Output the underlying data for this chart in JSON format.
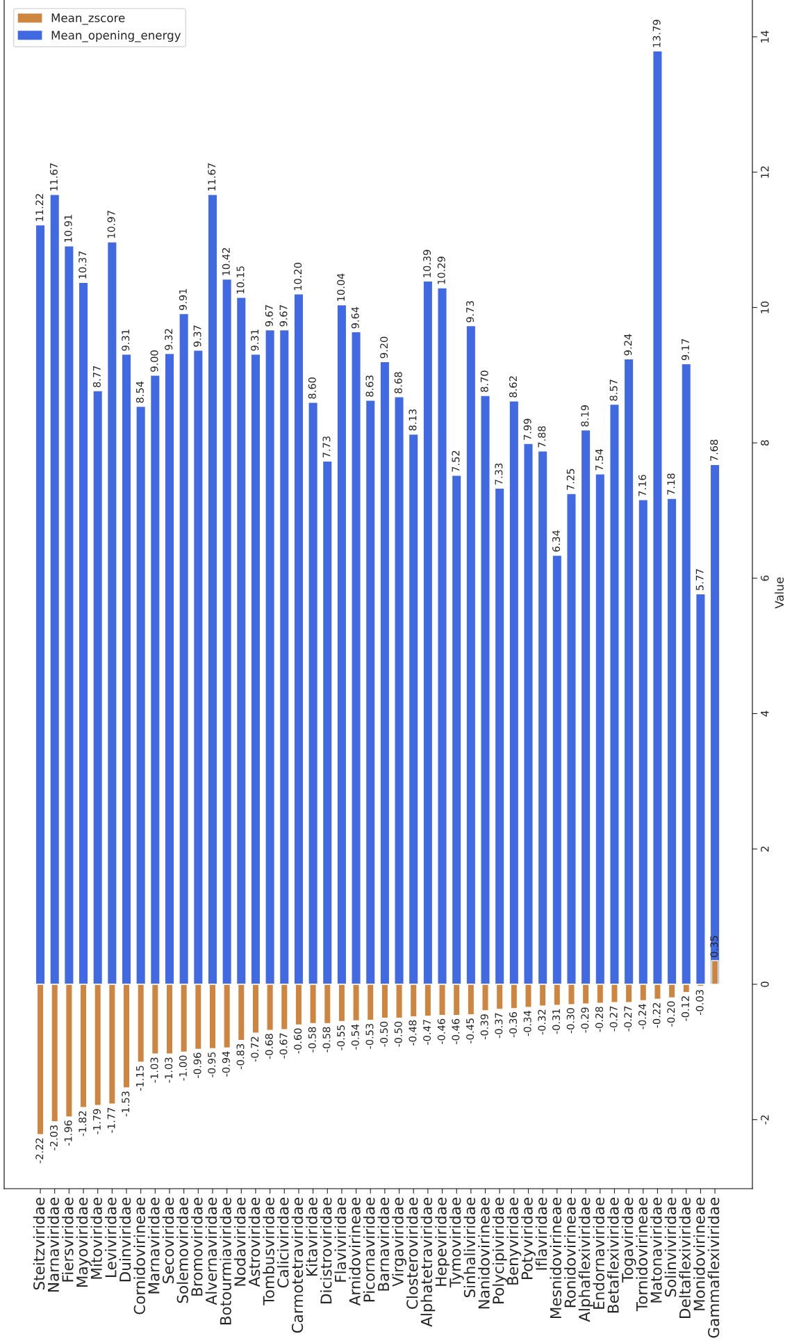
{
  "chart_data": {
    "type": "bar",
    "ylabel": "Value",
    "categories": [
      "Steitzviridae",
      "Narnaviridae",
      "Fiersviridae",
      "Mayoviridae",
      "Mitoviridae",
      "Leviviridae",
      "Duinviridae",
      "Cornidovirineae",
      "Marnaviridae",
      "Secoviridae",
      "Solemoviridae",
      "Bromoviridae",
      "Alvernaviridae",
      "Botourmiaviridae",
      "Nodaviridae",
      "Astroviridae",
      "Tombusviridae",
      "Caliciviridae",
      "Carmotetraviridae",
      "Kitaviridae",
      "Dicistroviridae",
      "Flaviviridae",
      "Arnidovirineae",
      "Picornaviridae",
      "Barnaviridae",
      "Virgaviridae",
      "Closteroviridae",
      "Alphatetraviridae",
      "Hepeviridae",
      "Tymoviridae",
      "Sinhaliviridae",
      "Nanidovirineae",
      "Polycipiviridae",
      "Benyviridae",
      "Potyviridae",
      "Iflaviridae",
      "Mesnidovirineae",
      "Ronidovirineae",
      "Alphaflexiviridae",
      "Endornaviridae",
      "Betaflexiviridae",
      "Togaviridae",
      "Tornidovirineae",
      "Matonaviridae",
      "Solinviviridae",
      "Deltaflexiviridae",
      "Monidovirineae",
      "Gammaflexiviridae"
    ],
    "series": [
      {
        "name": "Mean_zscore",
        "color": "#cd853f",
        "values": [
          -2.22,
          -2.03,
          -1.96,
          -1.82,
          -1.79,
          -1.77,
          -1.53,
          -1.15,
          -1.03,
          -1.03,
          -1.0,
          -0.96,
          -0.95,
          -0.94,
          -0.83,
          -0.72,
          -0.68,
          -0.67,
          -0.6,
          -0.58,
          -0.58,
          -0.55,
          -0.54,
          -0.53,
          -0.5,
          -0.5,
          -0.48,
          -0.47,
          -0.46,
          -0.46,
          -0.45,
          -0.39,
          -0.37,
          -0.36,
          -0.34,
          -0.32,
          -0.31,
          -0.3,
          -0.29,
          -0.28,
          -0.27,
          -0.27,
          -0.24,
          -0.22,
          -0.2,
          -0.12,
          -0.03,
          0.35
        ],
        "value_labels": [
          "-2.22",
          "-2.03",
          "-1.96",
          "-1.82",
          "-1.79",
          "-1.77",
          "-1.53",
          "-1.15",
          "-1.03",
          "-1.03",
          "-1.00",
          "-0.96",
          "-0.95",
          "-0.94",
          "-0.83",
          "-0.72",
          "-0.68",
          "-0.67",
          "-0.60",
          "-0.58",
          "-0.58",
          "-0.55",
          "-0.54",
          "-0.53",
          "-0.50",
          "-0.50",
          "-0.48",
          "-0.47",
          "-0.46",
          "-0.46",
          "-0.45",
          "-0.39",
          "-0.37",
          "-0.36",
          "-0.34",
          "-0.32",
          "-0.31",
          "-0.30",
          "-0.29",
          "-0.28",
          "-0.27",
          "-0.27",
          "-0.24",
          "-0.22",
          "-0.20",
          "-0.12",
          "-0.03",
          "0.35"
        ]
      },
      {
        "name": "Mean_opening_energy",
        "color": "#4169e1",
        "values": [
          11.22,
          11.67,
          10.91,
          10.37,
          8.77,
          10.97,
          9.31,
          8.54,
          9.0,
          9.32,
          9.91,
          9.37,
          11.67,
          10.42,
          10.15,
          9.31,
          9.67,
          9.67,
          10.2,
          8.6,
          7.73,
          10.04,
          9.64,
          8.63,
          9.2,
          8.68,
          8.13,
          10.39,
          10.29,
          7.52,
          9.73,
          8.7,
          7.33,
          8.62,
          7.99,
          7.88,
          6.34,
          7.25,
          8.19,
          7.54,
          8.57,
          9.24,
          7.16,
          13.79,
          7.18,
          9.17,
          5.77,
          7.68
        ],
        "value_labels": [
          "11.22",
          "11.67",
          "10.91",
          "10.37",
          "8.77",
          "10.97",
          "9.31",
          "8.54",
          "9.00",
          "9.32",
          "9.91",
          "9.37",
          "11.67",
          "10.42",
          "10.15",
          "9.31",
          "9.67",
          "9.67",
          "10.20",
          "8.60",
          "7.73",
          "10.04",
          "9.64",
          "8.63",
          "9.20",
          "8.68",
          "8.13",
          "10.39",
          "10.29",
          "7.52",
          "9.73",
          "8.70",
          "7.33",
          "8.62",
          "7.99",
          "7.88",
          "6.34",
          "7.25",
          "8.19",
          "7.54",
          "8.57",
          "9.24",
          "7.16",
          "13.79",
          "7.18",
          "9.17",
          "5.77",
          "7.68"
        ]
      }
    ],
    "ylim": [
      -3.02,
      14.59
    ],
    "yticks": [
      -2,
      0,
      2,
      4,
      6,
      8,
      10,
      12,
      14
    ],
    "grid": false,
    "legend": "top left"
  }
}
